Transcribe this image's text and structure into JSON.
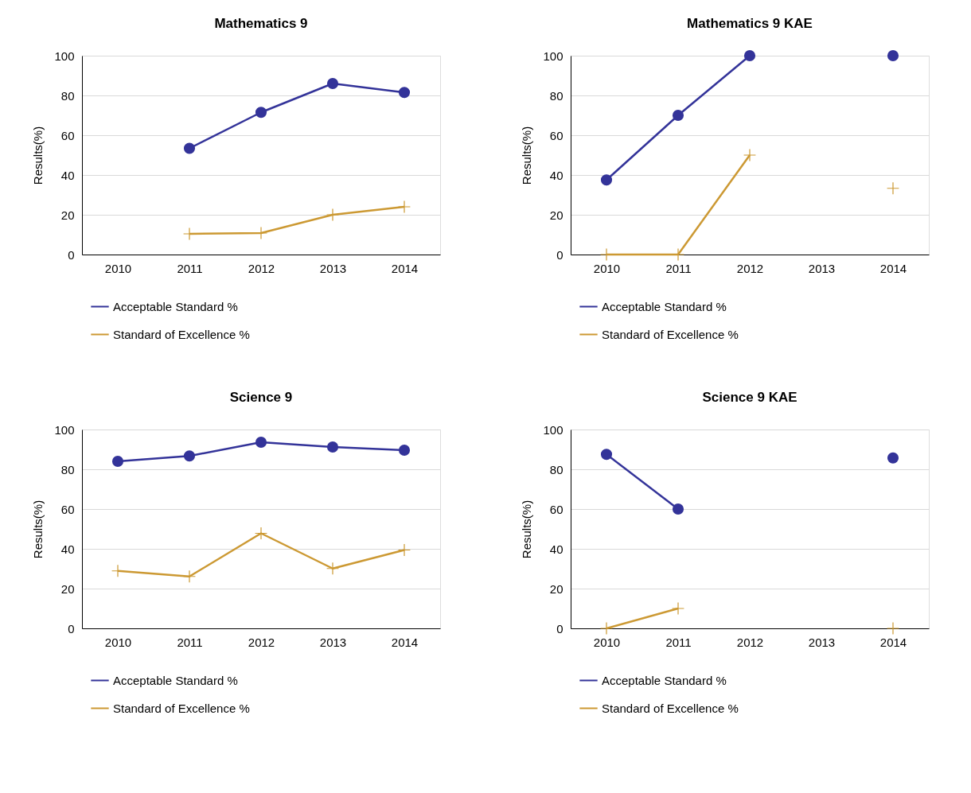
{
  "chart_data": [
    {
      "type": "line",
      "title": "Mathematics 9",
      "ylabel": "Results(%)",
      "categories": [
        "2010",
        "2011",
        "2012",
        "2013",
        "2014"
      ],
      "ylim": [
        0,
        100
      ],
      "yticks": [
        0,
        20,
        40,
        60,
        80,
        100
      ],
      "grid": "y",
      "legend": "bottom",
      "series": [
        {
          "name": "Acceptable Standard %",
          "color": "#333399",
          "marker": "circle",
          "values": [
            null,
            53.4,
            71.5,
            86,
            81.5
          ]
        },
        {
          "name": "Standard of Excellence %",
          "color": "#cc9933",
          "marker": "cross",
          "values": [
            null,
            10.4,
            10.8,
            20,
            24
          ]
        }
      ]
    },
    {
      "type": "line",
      "title": "Mathematics 9 KAE",
      "ylabel": "Results(%)",
      "categories": [
        "2010",
        "2011",
        "2012",
        "2013",
        "2014"
      ],
      "ylim": [
        0,
        100
      ],
      "yticks": [
        0,
        20,
        40,
        60,
        80,
        100
      ],
      "grid": "y",
      "legend": "bottom",
      "series": [
        {
          "name": "Acceptable Standard %",
          "color": "#333399",
          "marker": "circle",
          "values": [
            37.5,
            70,
            100,
            null,
            100
          ]
        },
        {
          "name": "Standard of Excellence %",
          "color": "#cc9933",
          "marker": "cross",
          "values": [
            0,
            0,
            50,
            null,
            33.3
          ]
        }
      ]
    },
    {
      "type": "line",
      "title": "Science 9",
      "ylabel": "Results(%)",
      "categories": [
        "2010",
        "2011",
        "2012",
        "2013",
        "2014"
      ],
      "ylim": [
        0,
        100
      ],
      "yticks": [
        0,
        20,
        40,
        60,
        80,
        100
      ],
      "grid": "y",
      "legend": "bottom",
      "series": [
        {
          "name": "Acceptable Standard %",
          "color": "#333399",
          "marker": "circle",
          "values": [
            84,
            86.7,
            93.6,
            91.2,
            89.6
          ]
        },
        {
          "name": "Standard of Excellence %",
          "color": "#cc9933",
          "marker": "cross",
          "values": [
            28.9,
            26.1,
            47.8,
            30.1,
            39.4
          ]
        }
      ]
    },
    {
      "type": "line",
      "title": "Science 9 KAE",
      "ylabel": "Results(%)",
      "categories": [
        "2010",
        "2011",
        "2012",
        "2013",
        "2014"
      ],
      "ylim": [
        0,
        100
      ],
      "yticks": [
        0,
        20,
        40,
        60,
        80,
        100
      ],
      "grid": "y",
      "legend": "bottom",
      "series": [
        {
          "name": "Acceptable Standard %",
          "color": "#333399",
          "marker": "circle",
          "values": [
            87.5,
            60,
            null,
            null,
            85.7
          ]
        },
        {
          "name": "Standard of Excellence %",
          "color": "#cc9933",
          "marker": "cross",
          "values": [
            0,
            10,
            null,
            null,
            0
          ]
        }
      ]
    }
  ]
}
